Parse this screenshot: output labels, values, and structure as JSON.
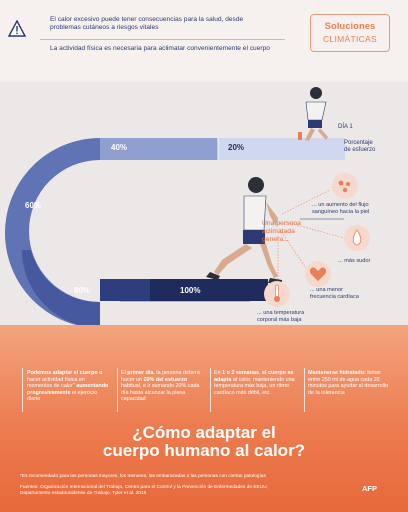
{
  "header": {
    "warning_text": "El calor excesivo puede tener consecuencias para la salud, desde problemas cutáneos a riesgos vitales",
    "intro_text": "La actividad física es necesaria para aclimatar convenientemente el cuerpo",
    "logo_line1": "Soluciones",
    "logo_line2": "CLIMÁTICAS"
  },
  "diagram": {
    "pct_40": "40%",
    "pct_20": "20%",
    "pct_60": "60%",
    "pct_80": "80%",
    "pct_100": "100%",
    "dia_label": "DÍA 1",
    "effort_label_1": "Porcentaje",
    "effort_label_2": "de esfuerzo",
    "acclimated_1": "Una persona",
    "acclimated_2": "aclimatada",
    "acclimated_3": "genera...",
    "note_blood_1": "... un aumento del flujo",
    "note_blood_2": "sanguíneo hacia la piel",
    "note_sweat": "... más sudor",
    "note_heart_1": "... una menor",
    "note_heart_2": "frecuencia cardíaca",
    "note_temp_1": "... una temperatura",
    "note_temp_2": "corporal más baja"
  },
  "columns": [
    {
      "bold": "Podemos adaptar el cuerpo",
      "text1": " a hacer actividad física en momentos de calor\" ",
      "bold2": "aumentando progresivamente",
      "text2": " el ejercicio diario"
    },
    {
      "text0": "El ",
      "bold": "primer día",
      "text1": ", la persona deberá hacer un ",
      "bold2": "20% del esfuerzo",
      "text2": " habitual, e ir sumando 20% cada día hasta alcanzar la plena capacidad"
    },
    {
      "text0": "En ",
      "bold": "1 o 2 semanas",
      "text1": ", ",
      "bold2": "el cuerpo se adapta",
      "text2": " al calor, manteniendo una temperatura más baja, un ritmo cardíaco más débil, etc."
    },
    {
      "bold": "Mantenerse hidratado:",
      "text1": " beber entre 250 ml de agua cada 20 minutos para ayudar al desarrollo de la tolerancia"
    }
  ],
  "title_line1": "¿Cómo adaptar el",
  "title_line2": "cuerpo humano al calor?",
  "footnote": "*Es recomendado para las personas mayores, los menores, las embarazadas o las personas con ciertas patologías",
  "sources_1": "Fuentes: Organización Internacional del Trabajo, Centro para el Control y la Prevención de Enfermedades de EEUU,",
  "sources_2": "Departamento estadounidense de Trabajo, Tyler et al. 2016",
  "agency": "AFP",
  "colors": {
    "navy": "#2a3b73",
    "orange": "#e97f58",
    "light_band": "#cfd8ef"
  }
}
